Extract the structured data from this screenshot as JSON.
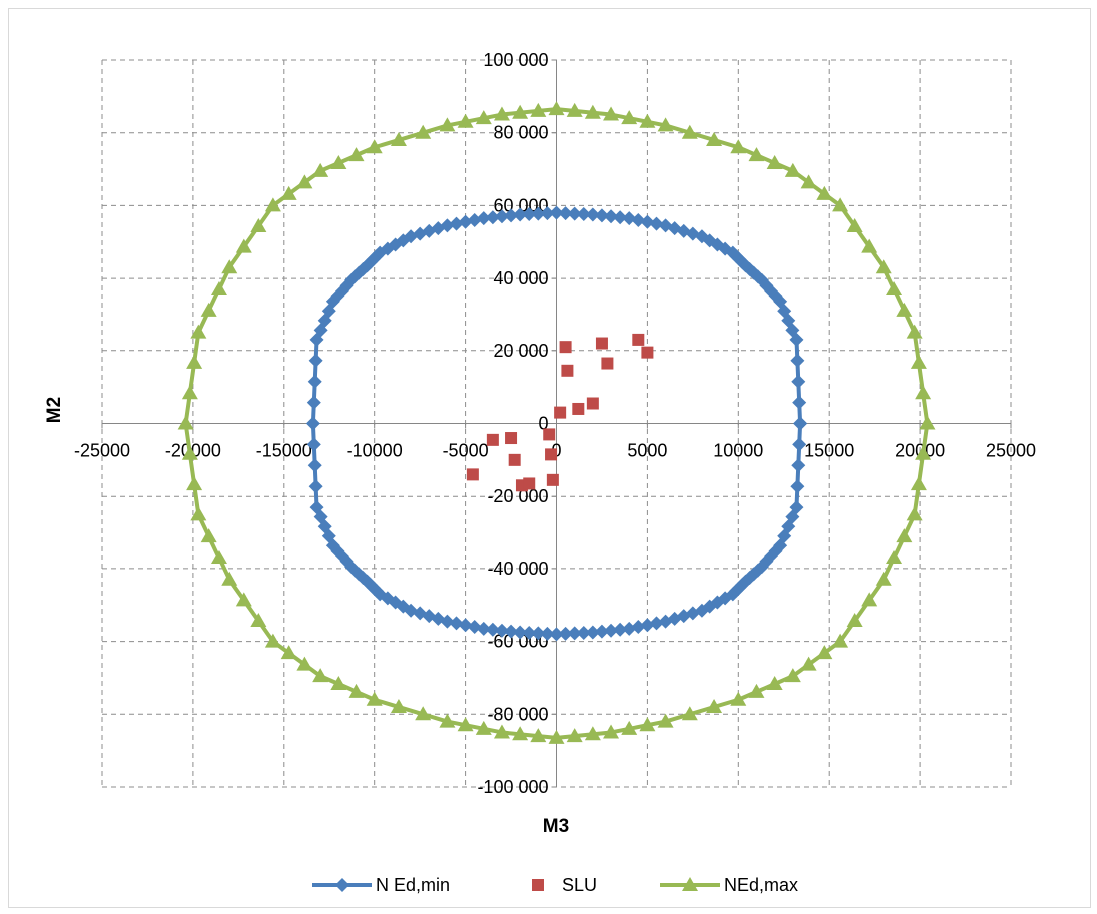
{
  "chart_data": {
    "type": "scatter",
    "title": "",
    "xlabel": "M3",
    "ylabel": "M2",
    "xlim": [
      -25000,
      25000
    ],
    "ylim": [
      -100000,
      100000
    ],
    "x_ticks": [
      -25000,
      -20000,
      -15000,
      -10000,
      -5000,
      0,
      5000,
      10000,
      15000,
      20000,
      25000
    ],
    "x_tick_labels": [
      "-25000",
      "-20000",
      "-15000",
      "-10000",
      "-5000",
      "0",
      "5000",
      "10000",
      "15000",
      "20000",
      "25000"
    ],
    "y_ticks": [
      -100000,
      -80000,
      -60000,
      -40000,
      -20000,
      0,
      20000,
      40000,
      60000,
      80000,
      100000
    ],
    "y_tick_labels": [
      "-100 000",
      "-80 000",
      "-60 000",
      "-40 000",
      "-20 000",
      "0",
      "20 000",
      "40 000",
      "60 000",
      "80 000",
      "100 000"
    ],
    "grid": true,
    "legend_position": "bottom",
    "series": [
      {
        "name": "N Ed,min",
        "marker": "diamond",
        "line": true,
        "color": "#4a7ebb",
        "x": [
          13400,
          13200,
          12300,
          11300,
          10400,
          9700,
          8000,
          6000,
          4000,
          2000,
          0,
          -2000,
          -4000,
          -6000,
          -8000,
          -9700,
          -10400,
          -11300,
          -12300,
          -13200,
          -13400,
          -13200,
          -12300,
          -11300,
          -10400,
          -9700,
          -8000,
          -6000,
          -4000,
          -2000,
          0,
          2000,
          4000,
          6000,
          8000,
          9700,
          10400,
          11300,
          12300,
          13200,
          13400
        ],
        "y": [
          0,
          23000,
          33500,
          39500,
          43500,
          47000,
          51500,
          54500,
          56500,
          57500,
          58000,
          57500,
          56500,
          54500,
          51500,
          47000,
          43500,
          39500,
          33500,
          23000,
          0,
          -23000,
          -33500,
          -39500,
          -43500,
          -47000,
          -51500,
          -54500,
          -56500,
          -57500,
          -58000,
          -57500,
          -56500,
          -54500,
          -51500,
          -47000,
          -43500,
          -39500,
          -33500,
          -23000,
          0
        ]
      },
      {
        "name": "SLU",
        "marker": "square",
        "line": false,
        "color": "#be4b48",
        "x": [
          500,
          600,
          2500,
          2800,
          4500,
          5000,
          200,
          1200,
          2000,
          -4600,
          -3500,
          -2300,
          -1900,
          -400,
          -300,
          -200,
          -2500,
          -1500
        ],
        "y": [
          21000,
          14500,
          22000,
          16500,
          23000,
          19500,
          3000,
          4000,
          5500,
          -14000,
          -4500,
          -10000,
          -17000,
          -3000,
          -8500,
          -15500,
          -4000,
          -16500
        ]
      },
      {
        "name": "NEd,max",
        "marker": "triangle",
        "line": true,
        "color": "#98b954",
        "x": [
          20400,
          19700,
          18000,
          15600,
          13000,
          10000,
          6000,
          3000,
          0,
          -3000,
          -6000,
          -10000,
          -13000,
          -15600,
          -18000,
          -19700,
          -20400,
          -19700,
          -18000,
          -15600,
          -13000,
          -10000,
          -6000,
          -3000,
          0,
          3000,
          6000,
          10000,
          13000,
          15600,
          18000,
          19700,
          20400
        ],
        "y": [
          0,
          25000,
          43000,
          60000,
          69500,
          76000,
          82000,
          85000,
          86500,
          85000,
          82000,
          76000,
          69500,
          60000,
          43000,
          25000,
          0,
          -25000,
          -43000,
          -60000,
          -69500,
          -76000,
          -82000,
          -85000,
          -86500,
          -85000,
          -82000,
          -76000,
          -69500,
          -60000,
          -43000,
          -25000,
          0
        ]
      }
    ]
  }
}
